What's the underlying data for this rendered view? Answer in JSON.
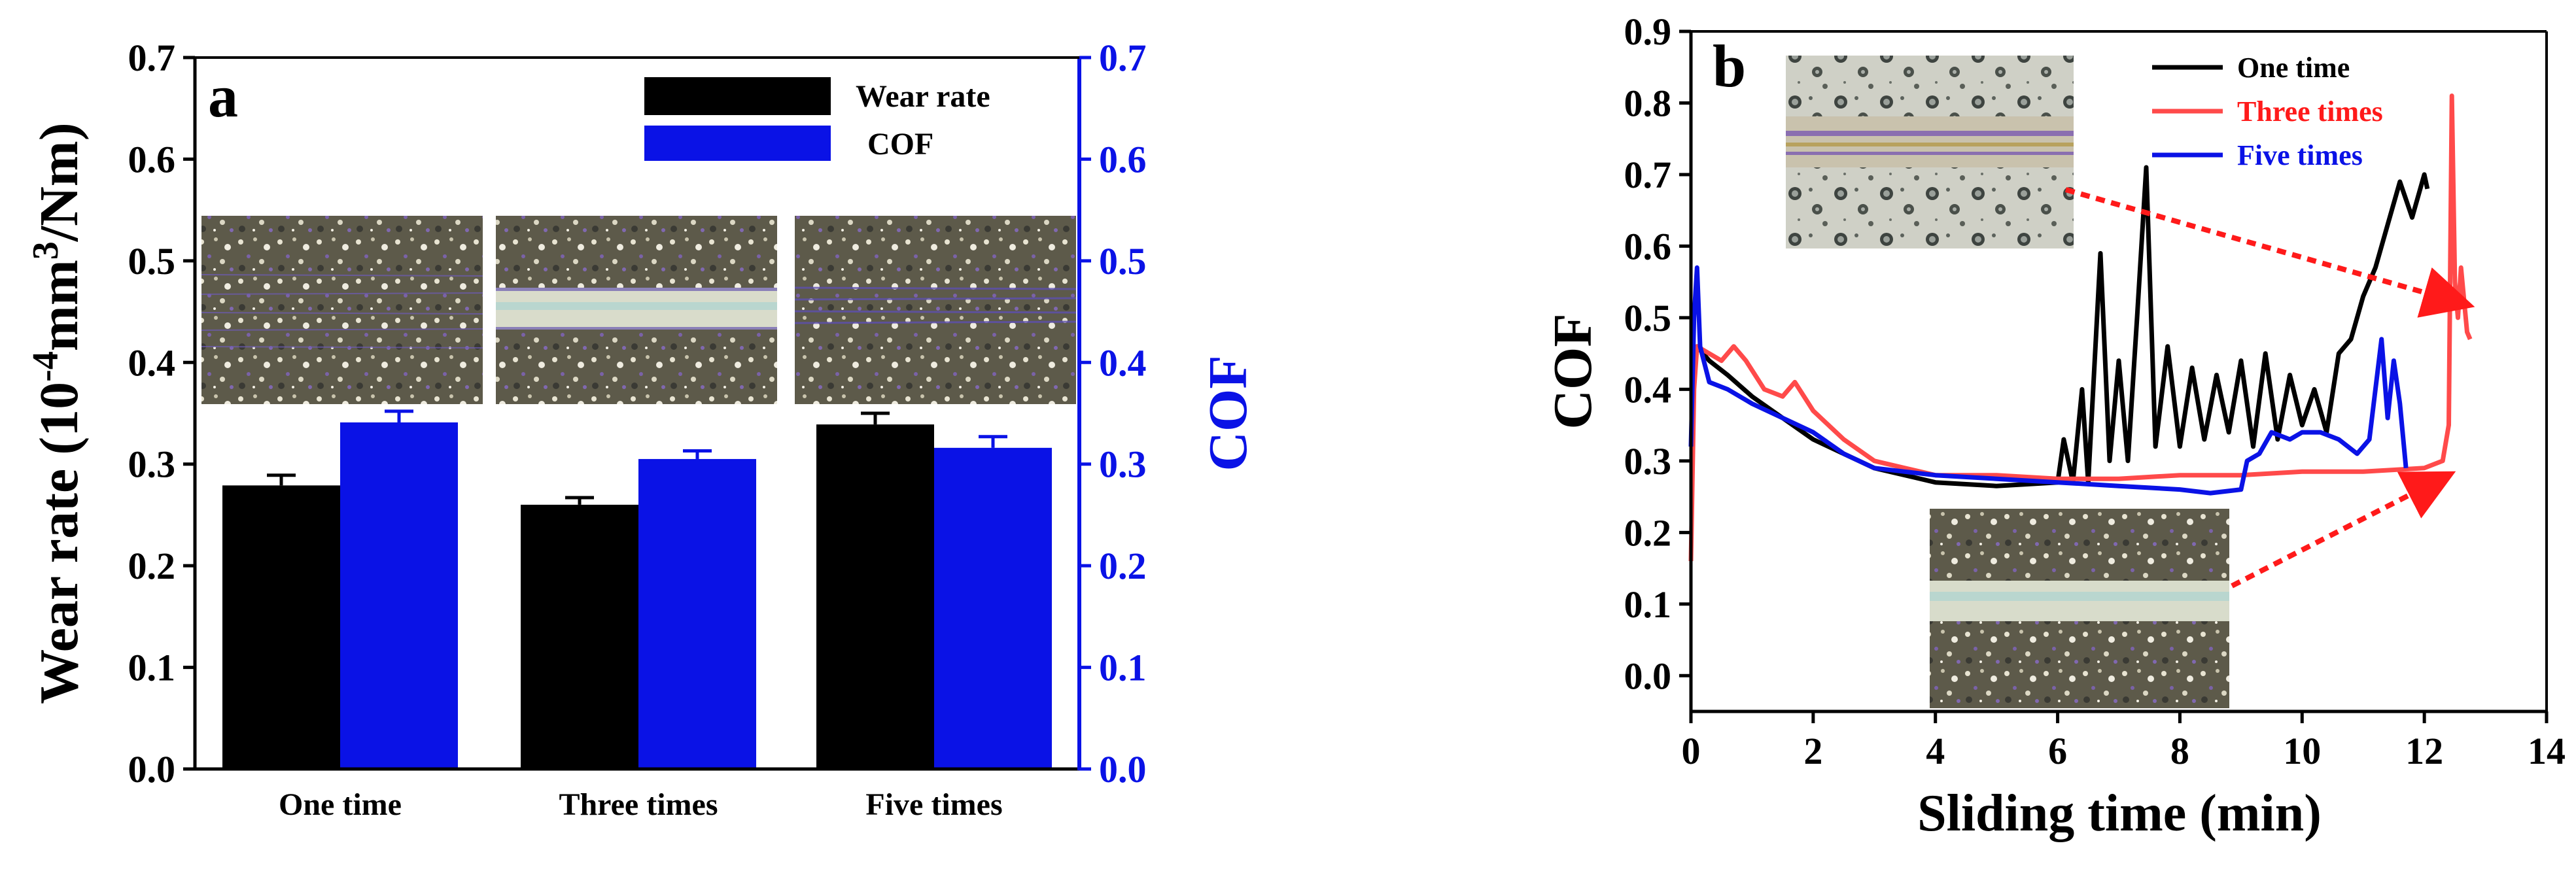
{
  "colors": {
    "black": "#000000",
    "blue": "#0a12e6",
    "red": "#ff4a4a",
    "arrow": "#ff1a1a"
  },
  "chart_data": [
    {
      "panel_label": "a",
      "type": "bar",
      "categories": [
        "One time",
        "Three times",
        "Five times"
      ],
      "series": [
        {
          "name": "Wear rate",
          "axis": "left",
          "color": "#000000",
          "values": [
            0.279,
            0.26,
            0.339
          ],
          "errors": [
            0.01,
            0.007,
            0.011
          ]
        },
        {
          "name": "COF",
          "axis": "right",
          "color": "#0a12e6",
          "values": [
            0.341,
            0.305,
            0.316
          ],
          "errors": [
            0.011,
            0.008,
            0.011
          ]
        }
      ],
      "ylabel_left": {
        "prefix": "Wear rate (10",
        "exp1": "-4",
        "mid": "mm",
        "exp2": "3",
        "suffix": "/Nm)"
      },
      "ylabel_right": "COF",
      "ylim": [
        0,
        0.7
      ],
      "yticks": [
        "0.0",
        "0.1",
        "0.2",
        "0.3",
        "0.4",
        "0.5",
        "0.6",
        "0.7"
      ],
      "legend": {
        "entries": [
          "Wear rate",
          "COF"
        ],
        "position": "top-right"
      },
      "insets": [
        "worn surface micrograph - One time",
        "worn surface micrograph - Three times",
        "worn surface micrograph - Five times"
      ]
    },
    {
      "panel_label": "b",
      "type": "line",
      "xlabel": "Sliding time (min)",
      "ylabel": "COF",
      "xlim": [
        0,
        14
      ],
      "ylim": [
        -0.05,
        0.9
      ],
      "xticks": [
        "0",
        "2",
        "4",
        "6",
        "8",
        "10",
        "12",
        "14"
      ],
      "yticks": [
        "0.0",
        "0.1",
        "0.2",
        "0.3",
        "0.4",
        "0.5",
        "0.6",
        "0.7",
        "0.8",
        "0.9"
      ],
      "legend": {
        "entries": [
          "One time",
          "Three times",
          "Five times"
        ],
        "position": "top-right"
      },
      "series": [
        {
          "name": "One time",
          "color": "#000000",
          "points": [
            [
              0.0,
              0.45
            ],
            [
              0.1,
              0.46
            ],
            [
              0.3,
              0.44
            ],
            [
              0.6,
              0.42
            ],
            [
              1.0,
              0.39
            ],
            [
              1.5,
              0.36
            ],
            [
              2.0,
              0.33
            ],
            [
              2.5,
              0.31
            ],
            [
              3.0,
              0.29
            ],
            [
              3.5,
              0.28
            ],
            [
              4.0,
              0.27
            ],
            [
              5.0,
              0.265
            ],
            [
              6.0,
              0.27
            ],
            [
              6.1,
              0.33
            ],
            [
              6.25,
              0.27
            ],
            [
              6.4,
              0.4
            ],
            [
              6.5,
              0.27
            ],
            [
              6.7,
              0.59
            ],
            [
              6.85,
              0.3
            ],
            [
              7.0,
              0.44
            ],
            [
              7.15,
              0.3
            ],
            [
              7.3,
              0.5
            ],
            [
              7.45,
              0.71
            ],
            [
              7.6,
              0.32
            ],
            [
              7.8,
              0.46
            ],
            [
              8.0,
              0.32
            ],
            [
              8.2,
              0.43
            ],
            [
              8.4,
              0.33
            ],
            [
              8.6,
              0.42
            ],
            [
              8.8,
              0.34
            ],
            [
              9.0,
              0.44
            ],
            [
              9.2,
              0.32
            ],
            [
              9.4,
              0.45
            ],
            [
              9.6,
              0.33
            ],
            [
              9.8,
              0.42
            ],
            [
              10.0,
              0.35
            ],
            [
              10.2,
              0.4
            ],
            [
              10.4,
              0.34
            ],
            [
              10.6,
              0.45
            ],
            [
              10.8,
              0.47
            ],
            [
              11.0,
              0.53
            ],
            [
              11.2,
              0.57
            ],
            [
              11.4,
              0.63
            ],
            [
              11.6,
              0.69
            ],
            [
              11.8,
              0.64
            ],
            [
              12.0,
              0.7
            ],
            [
              12.05,
              0.68
            ]
          ]
        },
        {
          "name": "Three times",
          "color": "#ff4a4a",
          "points": [
            [
              0.0,
              0.16
            ],
            [
              0.05,
              0.4
            ],
            [
              0.1,
              0.46
            ],
            [
              0.3,
              0.45
            ],
            [
              0.5,
              0.44
            ],
            [
              0.7,
              0.46
            ],
            [
              0.9,
              0.44
            ],
            [
              1.2,
              0.4
            ],
            [
              1.5,
              0.39
            ],
            [
              1.7,
              0.41
            ],
            [
              2.0,
              0.37
            ],
            [
              2.5,
              0.33
            ],
            [
              3.0,
              0.3
            ],
            [
              3.5,
              0.29
            ],
            [
              4.0,
              0.28
            ],
            [
              5.0,
              0.28
            ],
            [
              6.0,
              0.275
            ],
            [
              7.0,
              0.275
            ],
            [
              8.0,
              0.28
            ],
            [
              9.0,
              0.28
            ],
            [
              10.0,
              0.285
            ],
            [
              11.0,
              0.285
            ],
            [
              12.0,
              0.29
            ],
            [
              12.3,
              0.3
            ],
            [
              12.4,
              0.35
            ],
            [
              12.45,
              0.81
            ],
            [
              12.5,
              0.55
            ],
            [
              12.55,
              0.5
            ],
            [
              12.6,
              0.57
            ],
            [
              12.7,
              0.48
            ],
            [
              12.75,
              0.47
            ]
          ]
        },
        {
          "name": "Five times",
          "color": "#0a12e6",
          "points": [
            [
              0.0,
              0.32
            ],
            [
              0.05,
              0.5
            ],
            [
              0.1,
              0.57
            ],
            [
              0.15,
              0.46
            ],
            [
              0.3,
              0.41
            ],
            [
              0.6,
              0.4
            ],
            [
              1.0,
              0.38
            ],
            [
              1.5,
              0.36
            ],
            [
              2.0,
              0.34
            ],
            [
              2.5,
              0.31
            ],
            [
              3.0,
              0.29
            ],
            [
              3.5,
              0.285
            ],
            [
              4.0,
              0.28
            ],
            [
              5.0,
              0.275
            ],
            [
              6.0,
              0.27
            ],
            [
              7.0,
              0.265
            ],
            [
              8.0,
              0.26
            ],
            [
              8.5,
              0.255
            ],
            [
              9.0,
              0.26
            ],
            [
              9.1,
              0.3
            ],
            [
              9.3,
              0.31
            ],
            [
              9.5,
              0.34
            ],
            [
              9.8,
              0.33
            ],
            [
              10.0,
              0.34
            ],
            [
              10.3,
              0.34
            ],
            [
              10.6,
              0.33
            ],
            [
              10.9,
              0.31
            ],
            [
              11.1,
              0.33
            ],
            [
              11.3,
              0.47
            ],
            [
              11.4,
              0.36
            ],
            [
              11.5,
              0.44
            ],
            [
              11.6,
              0.38
            ],
            [
              11.7,
              0.29
            ]
          ]
        }
      ],
      "insets": [
        "worn surface micrograph - Three times (upper)",
        "worn surface micrograph - One time (lower)"
      ]
    }
  ]
}
